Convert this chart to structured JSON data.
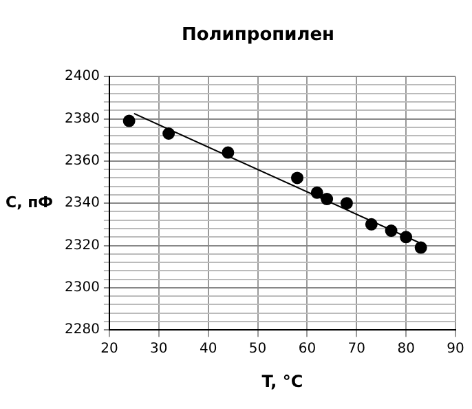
{
  "chart_data": {
    "type": "scatter",
    "title": "Полипропилен",
    "xlabel": "T, °C",
    "ylabel": "C, пФ",
    "xlim": [
      20,
      90
    ],
    "xticks": [
      20,
      30,
      40,
      50,
      60,
      70,
      80,
      90
    ],
    "ylim": [
      2280,
      2400
    ],
    "yticks": [
      2280,
      {
        "value": 2284,
        "label": null
      },
      {
        "value": 2288,
        "label": null
      },
      {
        "value": 2292,
        "label": null
      },
      {
        "value": 2296,
        "label": null
      },
      2300,
      {
        "value": 2304,
        "label": null
      },
      {
        "value": 2308,
        "label": null
      },
      {
        "value": 2312,
        "label": null
      },
      {
        "value": 2316,
        "label": null
      },
      2320,
      {
        "value": 2324,
        "label": null
      },
      {
        "value": 2328,
        "label": null
      },
      {
        "value": 2332,
        "label": null
      },
      {
        "value": 2336,
        "label": null
      },
      2340,
      {
        "value": 2344,
        "label": null
      },
      {
        "value": 2348,
        "label": null
      },
      {
        "value": 2352,
        "label": null
      },
      {
        "value": 2356,
        "label": null
      },
      2360,
      {
        "value": 2364,
        "label": null
      },
      {
        "value": 2368,
        "label": null
      },
      {
        "value": 2372,
        "label": null
      },
      {
        "value": 2376,
        "label": null
      },
      2380,
      {
        "value": 2384,
        "label": null
      },
      {
        "value": 2388,
        "label": null
      },
      {
        "value": 2392,
        "label": null
      },
      {
        "value": 2396,
        "label": null
      },
      2400
    ],
    "grid": true,
    "legend": false,
    "marker": "circle",
    "series": [
      {
        "color": "#000000",
        "x": [
          24,
          32,
          44,
          58,
          62,
          64,
          68,
          73,
          77,
          80,
          83
        ],
        "values": [
          2379,
          2373,
          2364,
          2352,
          2345,
          2342,
          2340,
          2330,
          2327,
          2324,
          2319
        ]
      },
      {
        "type": "line",
        "color": "#000000",
        "marker": "none",
        "line_style": "solid",
        "x": [
          25,
          83
        ],
        "values": [
          2382.5,
          2321
        ]
      }
    ]
  }
}
